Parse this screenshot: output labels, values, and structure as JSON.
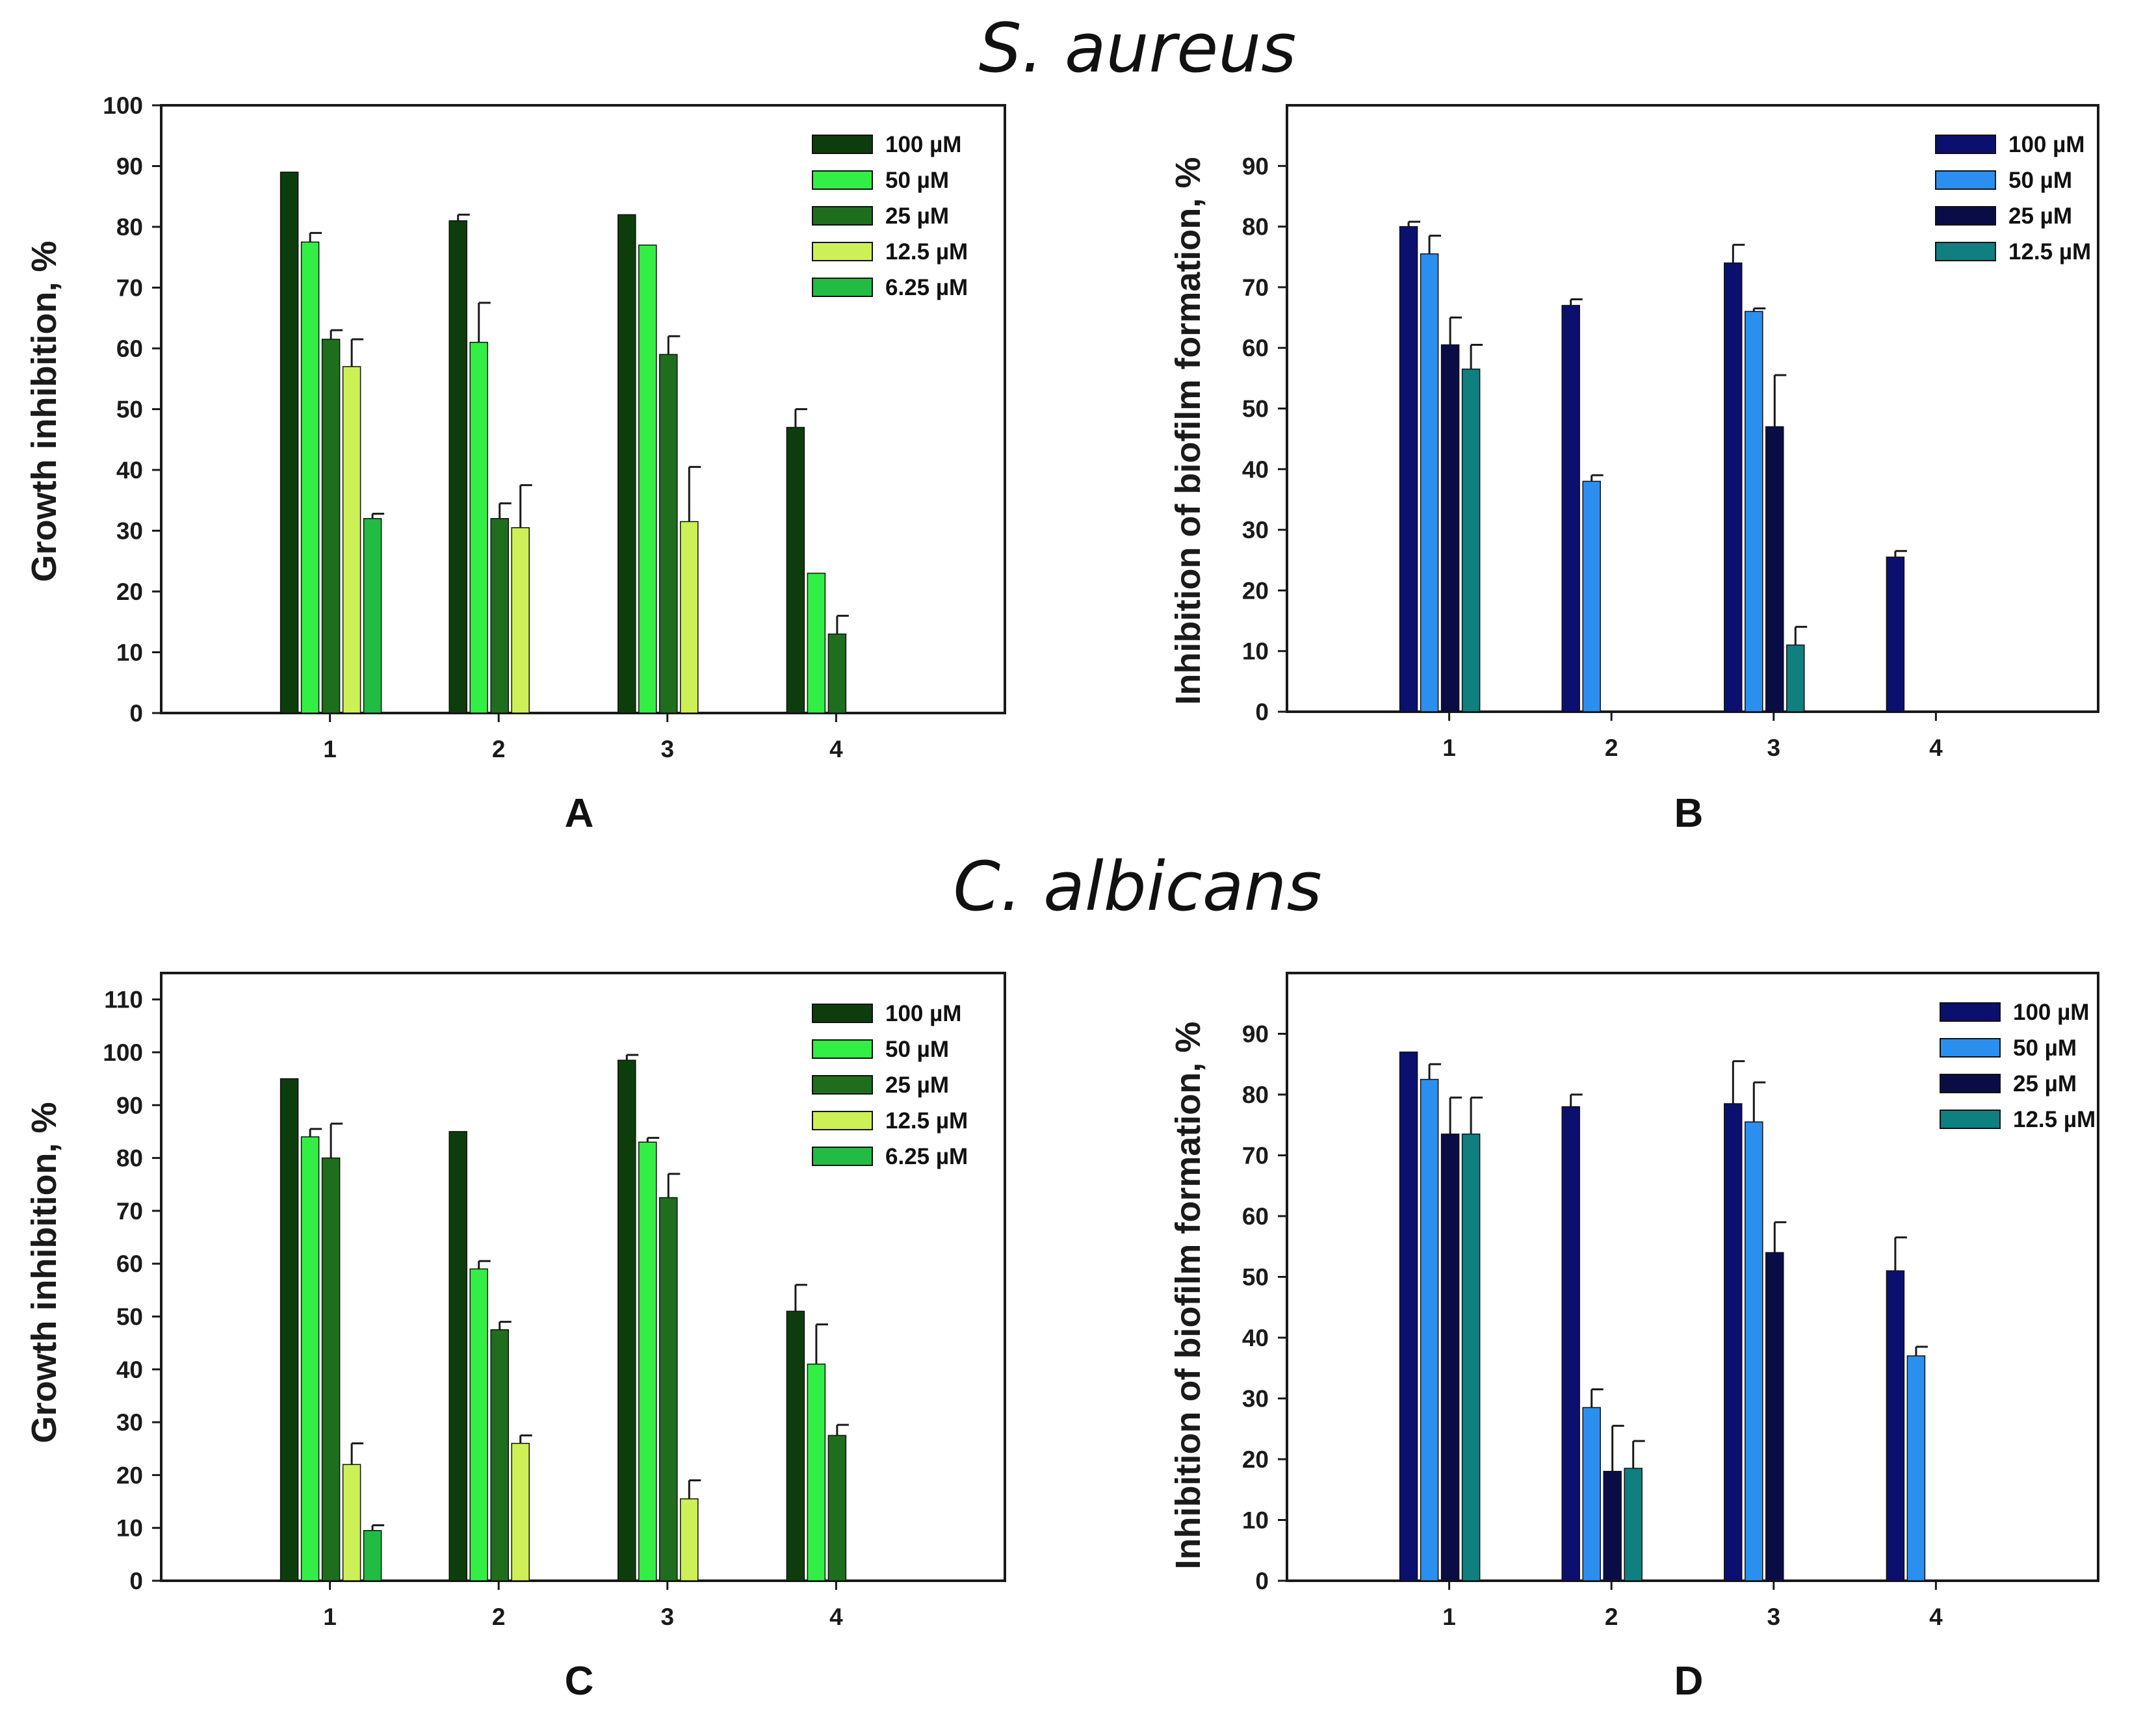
{
  "figure": {
    "title_top": "S. aureus",
    "title_bottom": "C. albicans"
  },
  "colors": {
    "green_series": [
      "#0d3d0d",
      "#33ee44",
      "#1e6e1e",
      "#ccf055",
      "#22bb44"
    ],
    "blue_series": [
      "#0b0f6e",
      "#2b8ff0",
      "#0a0d45",
      "#0f7f7f"
    ],
    "frame": "#1a1a1a",
    "error_bar": "#1a1a1a"
  },
  "chart_data": [
    {
      "panel": "A",
      "type": "bar",
      "title": "",
      "xlabel": "",
      "ylabel": "Growth inhibition, %",
      "categories": [
        "1",
        "2",
        "3",
        "4"
      ],
      "ylim": [
        0,
        100
      ],
      "yticks": [
        0,
        10,
        20,
        30,
        40,
        50,
        60,
        70,
        80,
        90,
        100
      ],
      "grid": false,
      "legend_position": "top-right",
      "series": [
        {
          "name": "100 µM",
          "values": [
            89,
            81,
            82,
            47
          ],
          "errors": [
            0,
            1,
            0,
            3
          ]
        },
        {
          "name": "50 µM",
          "values": [
            77.5,
            61,
            77,
            23
          ],
          "errors": [
            1.5,
            6.5,
            0,
            0
          ]
        },
        {
          "name": "25 µM",
          "values": [
            61.5,
            32,
            59,
            13
          ],
          "errors": [
            1.5,
            2.5,
            3,
            3
          ]
        },
        {
          "name": "12.5 µM",
          "values": [
            57,
            30.5,
            31.5,
            null
          ],
          "errors": [
            4.5,
            7,
            9,
            null
          ]
        },
        {
          "name": "6.25 µM",
          "values": [
            32,
            null,
            null,
            null
          ],
          "errors": [
            0.8,
            null,
            null,
            null
          ]
        }
      ]
    },
    {
      "panel": "B",
      "type": "bar",
      "title": "",
      "xlabel": "",
      "ylabel": "Inhibition of biofilm formation, %",
      "categories": [
        "1",
        "2",
        "3",
        "4"
      ],
      "ylim": [
        0,
        100
      ],
      "yticks": [
        0,
        10,
        20,
        30,
        40,
        50,
        60,
        70,
        80,
        90
      ],
      "grid": false,
      "legend_position": "top-right",
      "series": [
        {
          "name": "100 µM",
          "values": [
            80,
            67,
            74,
            25.5
          ],
          "errors": [
            0.8,
            1,
            3,
            1
          ]
        },
        {
          "name": "50 µM",
          "values": [
            75.5,
            38,
            66,
            null
          ],
          "errors": [
            3,
            1,
            0.5,
            null
          ]
        },
        {
          "name": "25 µM",
          "values": [
            60.5,
            null,
            47,
            null
          ],
          "errors": [
            4.5,
            null,
            8.5,
            null
          ]
        },
        {
          "name": "12.5 µM",
          "values": [
            56.5,
            null,
            11,
            null
          ],
          "errors": [
            4,
            null,
            3,
            null
          ]
        }
      ]
    },
    {
      "panel": "C",
      "type": "bar",
      "title": "",
      "xlabel": "",
      "ylabel": "Growth inhibition, %",
      "categories": [
        "1",
        "2",
        "3",
        "4"
      ],
      "ylim": [
        0,
        115
      ],
      "yticks": [
        0,
        10,
        20,
        30,
        40,
        50,
        60,
        70,
        80,
        90,
        100,
        110
      ],
      "grid": false,
      "legend_position": "top-right",
      "series": [
        {
          "name": "100 µM",
          "values": [
            95,
            85,
            98.5,
            51
          ],
          "errors": [
            0,
            0,
            1,
            5
          ]
        },
        {
          "name": "50 µM",
          "values": [
            84,
            59,
            83,
            41
          ],
          "errors": [
            1.5,
            1.5,
            0.8,
            7.5
          ]
        },
        {
          "name": "25 µM",
          "values": [
            80,
            47.5,
            72.5,
            27.5
          ],
          "errors": [
            6.5,
            1.5,
            4.5,
            2
          ]
        },
        {
          "name": "12.5 µM",
          "values": [
            22,
            26,
            15.5,
            null
          ],
          "errors": [
            4,
            1.5,
            3.5,
            null
          ]
        },
        {
          "name": "6.25 µM",
          "values": [
            9.5,
            null,
            null,
            null
          ],
          "errors": [
            1,
            null,
            null,
            null
          ]
        }
      ]
    },
    {
      "panel": "D",
      "type": "bar",
      "title": "",
      "xlabel": "",
      "ylabel": "Inhibition of biofilm formation, %",
      "categories": [
        "1",
        "2",
        "3",
        "4"
      ],
      "ylim": [
        0,
        100
      ],
      "yticks": [
        0,
        10,
        20,
        30,
        40,
        50,
        60,
        70,
        80,
        90
      ],
      "grid": false,
      "legend_position": "top-right",
      "series": [
        {
          "name": "100 µM",
          "values": [
            87,
            78,
            78.5,
            51
          ],
          "errors": [
            0,
            2,
            7,
            5.5
          ]
        },
        {
          "name": "50 µM",
          "values": [
            82.5,
            28.5,
            75.5,
            37
          ],
          "errors": [
            2.5,
            3,
            6.5,
            1.5
          ]
        },
        {
          "name": "25 µM",
          "values": [
            73.5,
            18,
            54,
            null
          ],
          "errors": [
            6,
            7.5,
            5,
            null
          ]
        },
        {
          "name": "12.5 µM",
          "values": [
            73.5,
            18.5,
            null,
            null
          ],
          "errors": [
            6,
            4.5,
            null,
            null
          ]
        }
      ]
    }
  ]
}
